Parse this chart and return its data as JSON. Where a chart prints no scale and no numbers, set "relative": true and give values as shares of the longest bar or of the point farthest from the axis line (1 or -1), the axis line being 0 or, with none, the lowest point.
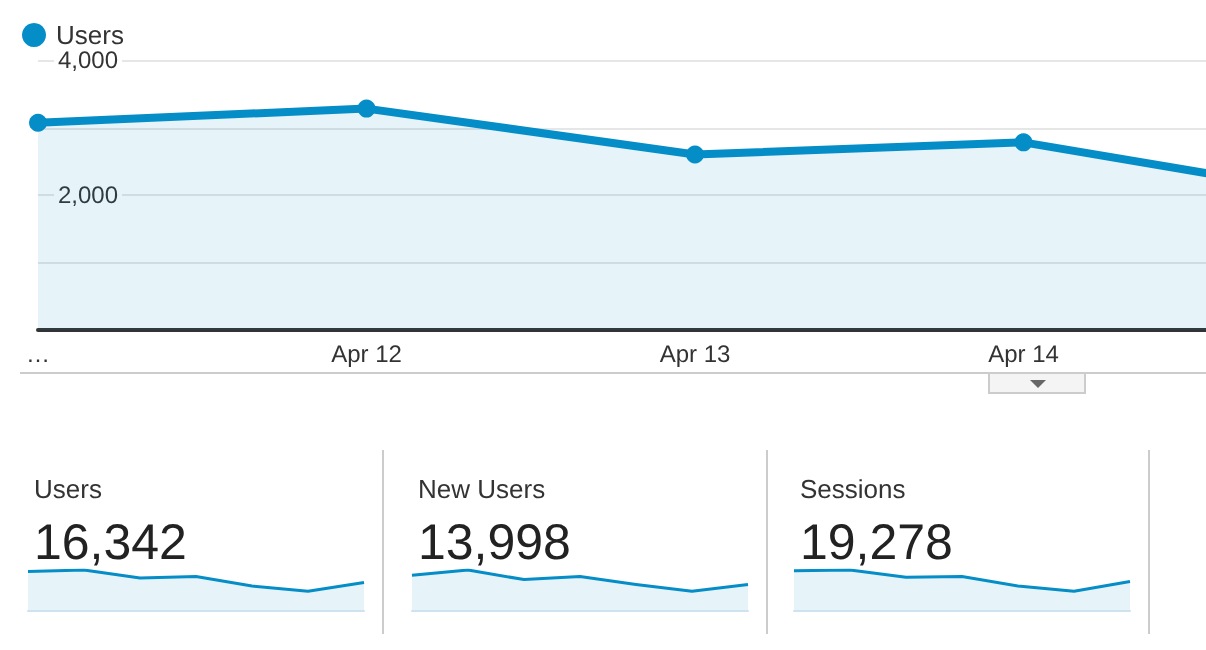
{
  "chart_data": [
    {
      "type": "area",
      "categories": [
        "…",
        "Apr 12",
        "Apr 13",
        "Apr 14",
        null
      ],
      "series": [
        {
          "name": "Users",
          "color": "#058dc7",
          "values": [
            3070,
            3280,
            2600,
            2780,
            1960
          ]
        }
      ],
      "ylim": [
        0,
        4000
      ],
      "yticks": [
        {
          "value": 0,
          "label": null
        },
        {
          "value": 1000,
          "label": null
        },
        {
          "value": 2000,
          "label": "2,000"
        },
        {
          "value": 3000,
          "label": null
        },
        {
          "value": 4000,
          "label": "4,000"
        }
      ],
      "grid": "y",
      "legend": "top left",
      "marker": "circle"
    },
    {
      "type": "area",
      "title": "Users",
      "annotations": [
        "16,342"
      ],
      "relative": true,
      "categories": [
        null,
        null,
        null,
        null,
        null,
        null,
        null
      ],
      "series": [
        {
          "color": "#058dc7",
          "values": [
            0.96,
            1,
            0.8,
            0.84,
            0.6,
            0.47,
            0.69
          ]
        }
      ]
    },
    {
      "type": "area",
      "title": "New Users",
      "annotations": [
        "13,998"
      ],
      "relative": true,
      "categories": [
        null,
        null,
        null,
        null,
        null,
        null,
        null
      ],
      "series": [
        {
          "color": "#058dc7",
          "values": [
            0.87,
            1,
            0.76,
            0.84,
            0.64,
            0.47,
            0.64
          ]
        }
      ]
    },
    {
      "type": "area",
      "title": "Sessions",
      "annotations": [
        "19,278"
      ],
      "relative": true,
      "categories": [
        null,
        null,
        null,
        null,
        null,
        null,
        null
      ],
      "series": [
        {
          "color": "#058dc7",
          "values": [
            0.98,
            1,
            0.82,
            0.84,
            0.6,
            0.47,
            0.71
          ]
        }
      ]
    }
  ]
}
